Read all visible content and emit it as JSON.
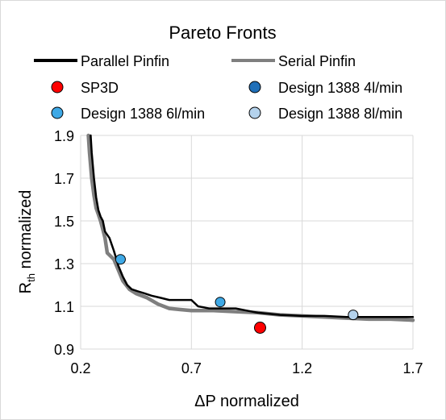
{
  "chart_data": {
    "type": "line",
    "title": "Pareto Fronts",
    "xlabel": "ΔP normalized",
    "ylabel_main": "R",
    "ylabel_sub": "th",
    "ylabel_rest": " normalized",
    "xlim": [
      0.2,
      1.7
    ],
    "ylim": [
      0.9,
      1.9
    ],
    "x_ticks": [
      0.2,
      0.7,
      1.2,
      1.7
    ],
    "x_tick_labels": [
      "0.2",
      "0.7",
      "1.2",
      "1.7"
    ],
    "y_ticks": [
      0.9,
      1.1,
      1.3,
      1.5,
      1.7,
      1.9
    ],
    "y_tick_labels": [
      "0.9",
      "1.1",
      "1.3",
      "1.5",
      "1.7",
      "1.9"
    ],
    "grid": true,
    "legend_placement": "top",
    "series": [
      {
        "name": "Parallel Pinfin",
        "color": "#000000",
        "x": [
          0.245,
          0.25,
          0.26,
          0.27,
          0.28,
          0.29,
          0.3,
          0.31,
          0.33,
          0.35,
          0.37,
          0.39,
          0.41,
          0.43,
          0.46,
          0.49,
          0.52,
          0.56,
          0.6,
          0.65,
          0.7,
          0.73,
          0.78,
          0.82,
          0.86,
          0.9,
          0.95,
          1.0,
          1.1,
          1.2,
          1.3,
          1.4,
          1.5,
          1.6,
          1.7
        ],
        "y": [
          1.9,
          1.82,
          1.7,
          1.61,
          1.55,
          1.52,
          1.5,
          1.45,
          1.42,
          1.36,
          1.29,
          1.24,
          1.2,
          1.18,
          1.17,
          1.16,
          1.15,
          1.14,
          1.13,
          1.13,
          1.13,
          1.1,
          1.09,
          1.09,
          1.09,
          1.09,
          1.08,
          1.07,
          1.06,
          1.055,
          1.055,
          1.05,
          1.05,
          1.05,
          1.05
        ]
      },
      {
        "name": "Serial Pinfin",
        "color": "#7f7f7f",
        "x": [
          0.235,
          0.24,
          0.25,
          0.26,
          0.27,
          0.28,
          0.29,
          0.3,
          0.31,
          0.32,
          0.33,
          0.35,
          0.37,
          0.39,
          0.42,
          0.45,
          0.5,
          0.55,
          0.6,
          0.65,
          0.7,
          0.8,
          0.9,
          1.0,
          1.1,
          1.2,
          1.3,
          1.4,
          1.5,
          1.6,
          1.7
        ],
        "y": [
          1.9,
          1.82,
          1.7,
          1.62,
          1.56,
          1.53,
          1.5,
          1.46,
          1.42,
          1.35,
          1.34,
          1.32,
          1.27,
          1.22,
          1.18,
          1.16,
          1.14,
          1.11,
          1.09,
          1.085,
          1.08,
          1.08,
          1.075,
          1.07,
          1.06,
          1.055,
          1.05,
          1.045,
          1.04,
          1.04,
          1.035
        ]
      }
    ],
    "points": [
      {
        "name": "SP3D",
        "x": 1.01,
        "y": 1.0,
        "color": "#ff0000"
      },
      {
        "name": "Design 1388 4l/min",
        "x": null,
        "y": null,
        "color": "#1f6fb8"
      },
      {
        "name": "Design 1388 6l/min",
        "x": 0.38,
        "y": 1.32,
        "color": "#3fa9e6"
      },
      {
        "name": "Design 1388 8l/min",
        "x": 1.43,
        "y": 1.06,
        "color": "#b4d2ec"
      },
      {
        "name": "Design 1388 (unlabeled)",
        "x": 0.83,
        "y": 1.12,
        "color": "#3fa9e6"
      }
    ]
  }
}
